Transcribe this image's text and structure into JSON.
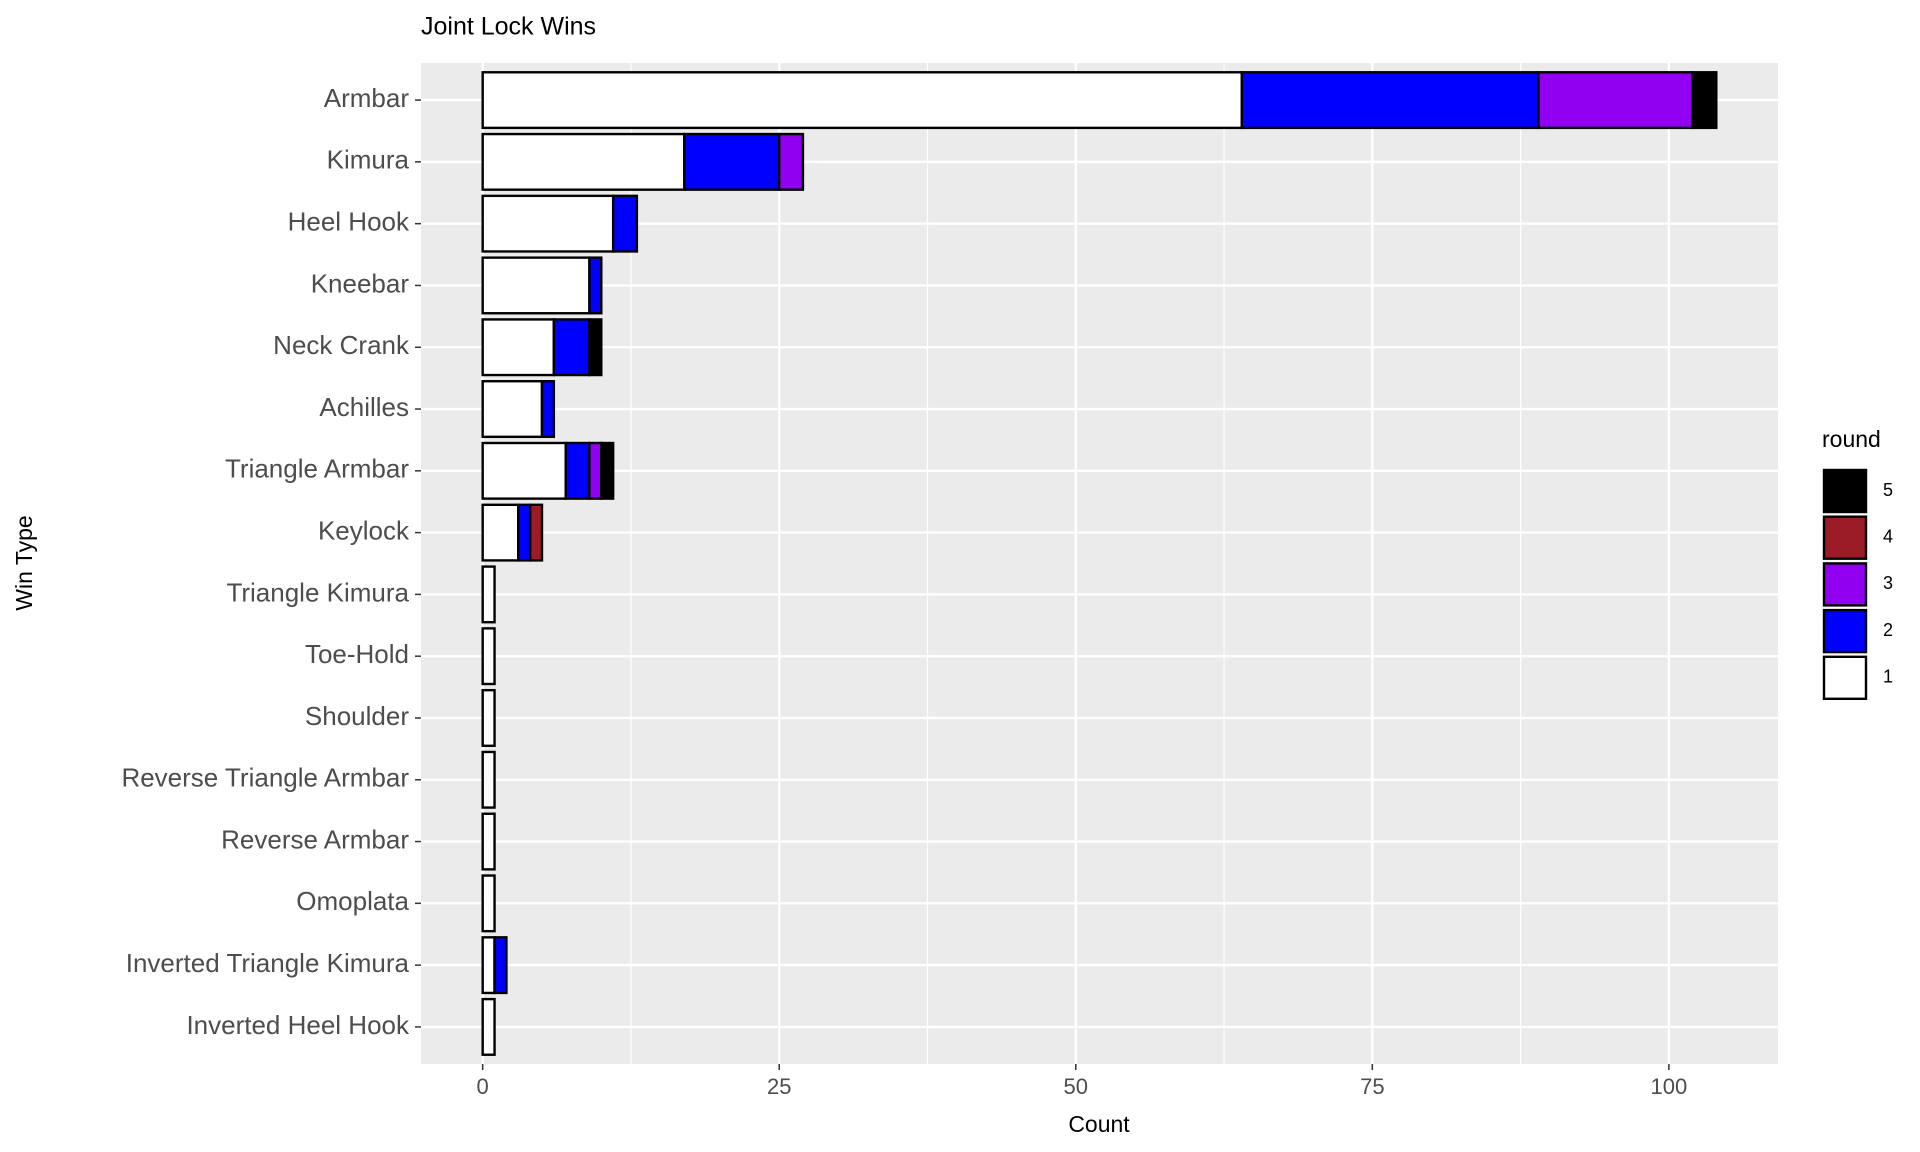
{
  "chart_data": {
    "type": "stacked-barh",
    "title": "Joint Lock Wins",
    "x_label": "Count",
    "y_label": "Win Type",
    "legend_title": "round",
    "categories": [
      "Armbar",
      "Kimura",
      "Heel Hook",
      "Kneebar",
      "Neck Crank",
      "Achilles",
      "Triangle Armbar",
      "Keylock",
      "Triangle Kimura",
      "Toe-Hold",
      "Shoulder",
      "Reverse Triangle Armbar",
      "Reverse Armbar",
      "Omoplata",
      "Inverted Triangle Kimura",
      "Inverted Heel Hook"
    ],
    "series": [
      {
        "name": "1",
        "color": "#ffffff",
        "values": [
          64,
          17,
          11,
          9,
          6,
          5,
          7,
          3,
          1,
          1,
          1,
          1,
          1,
          1,
          1,
          1
        ]
      },
      {
        "name": "2",
        "color": "#0000ff",
        "values": [
          25,
          8,
          2,
          1,
          3,
          1,
          2,
          1,
          0,
          0,
          0,
          0,
          0,
          0,
          1,
          0
        ]
      },
      {
        "name": "3",
        "color": "#9100f0",
        "values": [
          13,
          2,
          0,
          0,
          0,
          0,
          1,
          0,
          0,
          0,
          0,
          0,
          0,
          0,
          0,
          0
        ]
      },
      {
        "name": "4",
        "color": "#9b1c27",
        "values": [
          0,
          0,
          0,
          0,
          0,
          0,
          0,
          1,
          0,
          0,
          0,
          0,
          0,
          0,
          0,
          0
        ]
      },
      {
        "name": "5",
        "color": "#000000",
        "values": [
          2,
          0,
          0,
          0,
          1,
          0,
          1,
          0,
          0,
          0,
          0,
          0,
          0,
          0,
          0,
          0
        ]
      }
    ],
    "xlim": [
      -5.2,
      109.2
    ],
    "xticks": [
      0,
      25,
      50,
      75,
      100
    ],
    "grid": true,
    "legend": "right"
  }
}
